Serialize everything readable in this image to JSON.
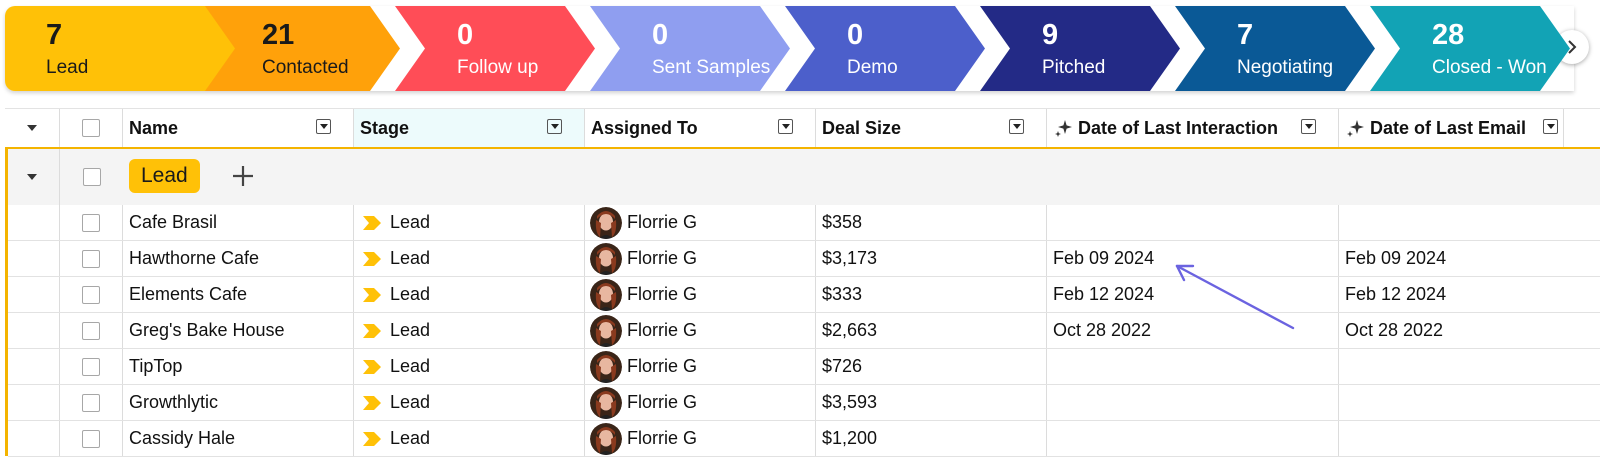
{
  "pipeline": {
    "stages": [
      {
        "count": "7",
        "label": "Lead",
        "color": "#ffc107",
        "text_color": "#1a1a1a"
      },
      {
        "count": "21",
        "label": "Contacted",
        "color": "#ffa10a",
        "text_color": "#1a1a1a"
      },
      {
        "count": "0",
        "label": "Follow up",
        "color": "#ff4d57",
        "text_color": "#ffffff"
      },
      {
        "count": "0",
        "label": "Sent Samples",
        "color": "#8f9ef0",
        "text_color": "#ffffff"
      },
      {
        "count": "0",
        "label": "Demo",
        "color": "#4c5fcb",
        "text_color": "#ffffff"
      },
      {
        "count": "9",
        "label": "Pitched",
        "color": "#232a86",
        "text_color": "#ffffff"
      },
      {
        "count": "7",
        "label": "Negotiating",
        "color": "#0a5996",
        "text_color": "#ffffff"
      },
      {
        "count": "28",
        "label": "Closed - Won",
        "color": "#12a3b5",
        "text_color": "#ffffff"
      }
    ],
    "scroll_icon": "chevron-right-icon"
  },
  "table": {
    "columns": [
      {
        "label": "Name"
      },
      {
        "label": "Stage"
      },
      {
        "label": "Assigned To"
      },
      {
        "label": "Deal Size"
      },
      {
        "label": "Date of Last Interaction",
        "icon": "sparkle-icon"
      },
      {
        "label": "Date of Last Email",
        "icon": "sparkle-icon"
      }
    ],
    "group": {
      "label": "Lead",
      "color": "#ffc107",
      "border_color": "#f4b400"
    },
    "rows": [
      {
        "name": "Cafe Brasil",
        "stage": "Lead",
        "assigned": "Florrie G",
        "deal": "$358",
        "last_interaction": "",
        "last_email": ""
      },
      {
        "name": "Hawthorne Cafe",
        "stage": "Lead",
        "assigned": "Florrie G",
        "deal": "$3,173",
        "last_interaction": "Feb 09 2024",
        "last_email": "Feb 09 2024"
      },
      {
        "name": "Elements Cafe",
        "stage": "Lead",
        "assigned": "Florrie G",
        "deal": "$333",
        "last_interaction": "Feb 12 2024",
        "last_email": "Feb 12 2024"
      },
      {
        "name": "Greg's Bake House",
        "stage": "Lead",
        "assigned": "Florrie G",
        "deal": "$2,663",
        "last_interaction": "Oct 28 2022",
        "last_email": "Oct 28 2022"
      },
      {
        "name": "TipTop",
        "stage": "Lead",
        "assigned": "Florrie G",
        "deal": "$726",
        "last_interaction": "",
        "last_email": ""
      },
      {
        "name": "Growthlytic",
        "stage": "Lead",
        "assigned": "Florrie G",
        "deal": "$3,593",
        "last_interaction": "",
        "last_email": ""
      },
      {
        "name": "Cassidy Hale",
        "stage": "Lead",
        "assigned": "Florrie G",
        "deal": "$1,200",
        "last_interaction": "",
        "last_email": ""
      }
    ]
  },
  "annotation": {
    "icon": "arrow-annotation-icon",
    "color": "#6b63e0"
  }
}
